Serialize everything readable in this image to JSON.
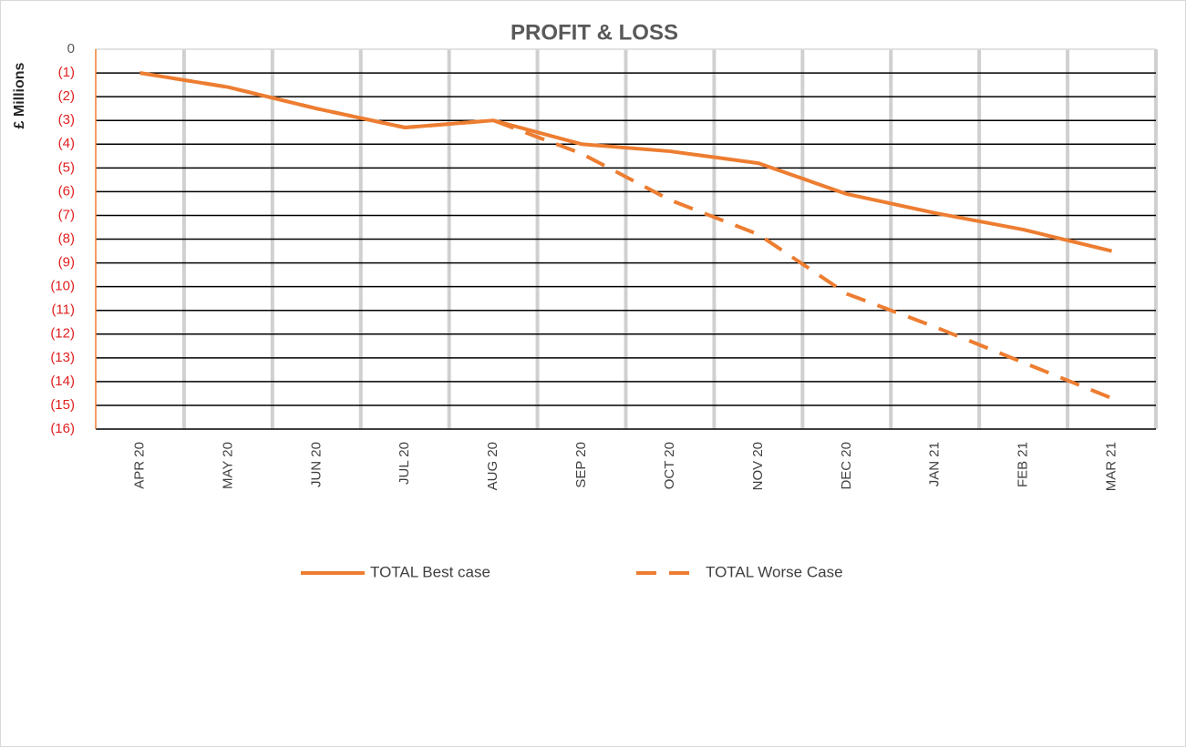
{
  "chart_data": {
    "type": "line",
    "title": "PROFIT & LOSS",
    "y_label": "£ Millions",
    "categories": [
      "APR 20",
      "MAY 20",
      "JUN 20",
      "JUL 20",
      "AUG 20",
      "SEP 20",
      "OCT 20",
      "NOV 20",
      "DEC 20",
      "JAN 21",
      "FEB 21",
      "MAR 21"
    ],
    "series": [
      {
        "name": "TOTAL Best case",
        "color": "#ed7d31",
        "dash": false,
        "values": [
          -1.0,
          -1.6,
          -2.5,
          -3.3,
          -3.0,
          -4.0,
          -4.3,
          -4.8,
          -6.1,
          -6.9,
          -7.6,
          -8.5
        ]
      },
      {
        "name": "TOTAL Worse Case",
        "color": "#ed7d31",
        "dash": true,
        "values": [
          -1.0,
          -1.6,
          -2.5,
          -3.3,
          -3.0,
          -4.4,
          -6.35,
          -7.8,
          -10.3,
          -11.7,
          -13.2,
          -14.7
        ]
      }
    ],
    "ylim": [
      -16,
      0
    ],
    "yticks": [
      0,
      {
        "value": -1,
        "label": "(1)"
      },
      {
        "value": -2,
        "label": "(2)"
      },
      {
        "value": -3,
        "label": "(3)"
      },
      {
        "value": -4,
        "label": "(4)"
      },
      {
        "value": -5,
        "label": "(5)"
      },
      {
        "value": -6,
        "label": "(6)"
      },
      {
        "value": -7,
        "label": "(7)"
      },
      {
        "value": -8,
        "label": "(8)"
      },
      {
        "value": -9,
        "label": "(9)"
      },
      {
        "value": -10,
        "label": "(10)"
      },
      {
        "value": -11,
        "label": "(11)"
      },
      {
        "value": -12,
        "label": "(12)"
      },
      {
        "value": -13,
        "label": "(13)"
      },
      {
        "value": -14,
        "label": "(14)"
      },
      {
        "value": -15,
        "label": "(15)"
      },
      {
        "value": -16,
        "label": "(16)"
      }
    ],
    "grid": true,
    "legend": "bottom"
  }
}
